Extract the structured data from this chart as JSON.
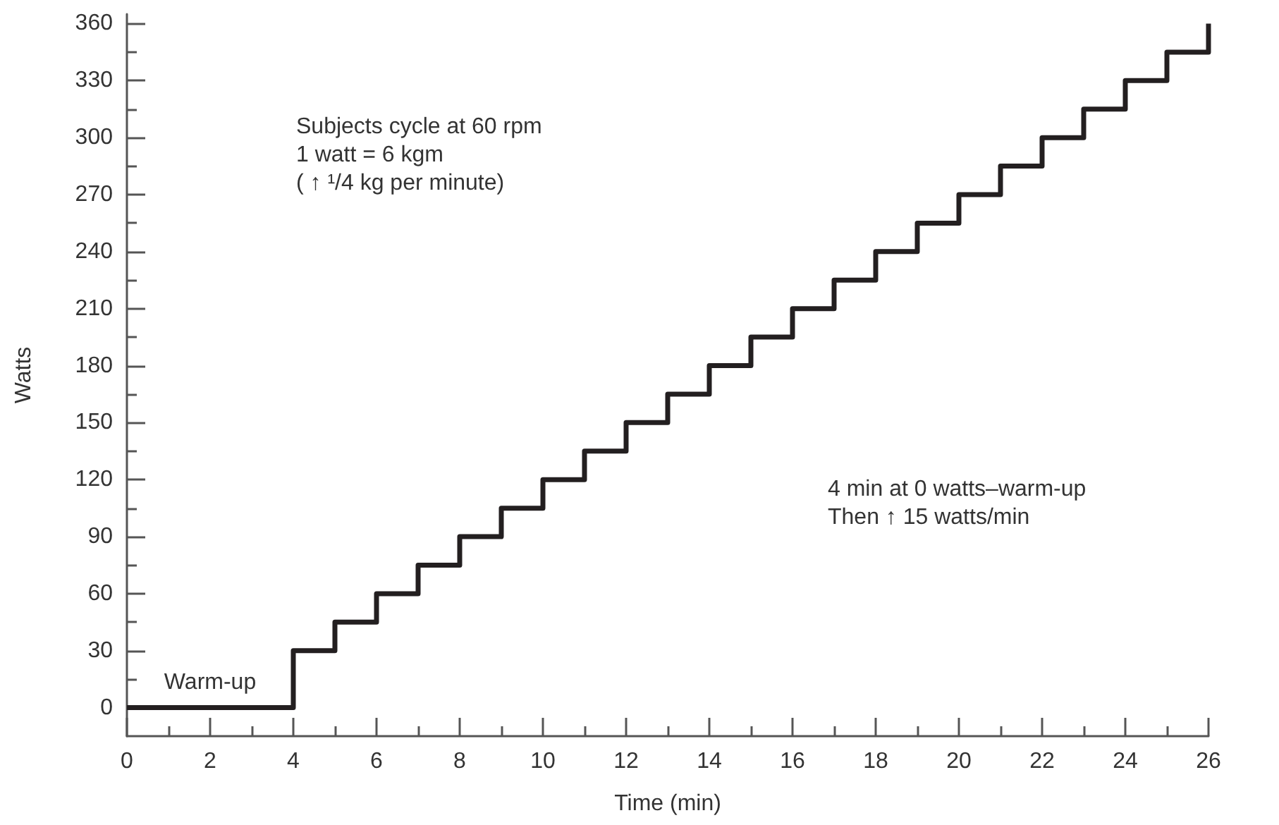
{
  "chart_data": {
    "type": "step",
    "xlabel": "Time (min)",
    "ylabel": "Watts",
    "x": [
      0,
      4,
      5,
      6,
      7,
      8,
      9,
      10,
      11,
      12,
      13,
      14,
      15,
      16,
      17,
      18,
      19,
      20,
      21,
      22,
      23,
      24,
      25,
      26
    ],
    "series": [
      {
        "color": "#231f20",
        "values": [
          0,
          30,
          45,
          60,
          75,
          90,
          105,
          120,
          135,
          150,
          165,
          180,
          195,
          210,
          225,
          240,
          255,
          270,
          285,
          300,
          315,
          330,
          345,
          360
        ]
      }
    ],
    "xlim": [
      0,
      26
    ],
    "xticks": [
      0,
      {
        "value": 1,
        "label": null
      },
      2,
      {
        "value": 3,
        "label": null
      },
      4,
      {
        "value": 5,
        "label": null
      },
      6,
      {
        "value": 7,
        "label": null
      },
      8,
      {
        "value": 9,
        "label": null
      },
      10,
      {
        "value": 11,
        "label": null
      },
      12,
      {
        "value": 13,
        "label": null
      },
      14,
      {
        "value": 15,
        "label": null
      },
      16,
      {
        "value": 17,
        "label": null
      },
      18,
      {
        "value": 19,
        "label": null
      },
      20,
      {
        "value": 21,
        "label": null
      },
      22,
      {
        "value": 23,
        "label": null
      },
      24,
      {
        "value": 25,
        "label": null
      },
      26
    ],
    "ylim": [
      -15,
      365
    ],
    "yticks": [
      0,
      {
        "value": 15,
        "label": null
      },
      30,
      {
        "value": 45,
        "label": null
      },
      60,
      {
        "value": 75,
        "label": null
      },
      90,
      {
        "value": 105,
        "label": null
      },
      120,
      {
        "value": 135,
        "label": null
      },
      150,
      {
        "value": 165,
        "label": null
      },
      180,
      {
        "value": 195,
        "label": null
      },
      210,
      {
        "value": 225,
        "label": null
      },
      240,
      {
        "value": 255,
        "label": null
      },
      270,
      {
        "value": 285,
        "label": null
      },
      300,
      {
        "value": 315,
        "label": null
      },
      330,
      {
        "value": 345,
        "label": null
      },
      360
    ],
    "annotations": [
      {
        "text": "Warm-up",
        "x": 2,
        "y": 0
      },
      "Subjects cycle at 60 rpm",
      "1 watt = 6 kgm",
      "( ↑ ¹/4 kg per minute)",
      "4 min at 0 watts–warm-up",
      "Then ↑ 15 watts/min"
    ],
    "marker": "none",
    "line_style": "solid"
  }
}
